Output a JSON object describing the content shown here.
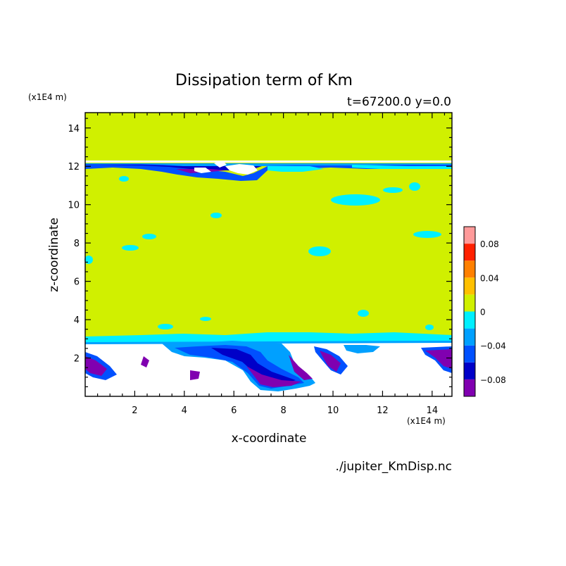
{
  "chart_data": {
    "type": "heatmap",
    "title": "Dissipation term of Km",
    "subtitle": "t=67200.0 y=0.0",
    "xlabel": "x-coordinate",
    "ylabel": "z-coordinate",
    "x_unit": "(x1E4 m)",
    "y_unit": "(x1E4 m)",
    "source_file": "./jupiter_KmDisp.nc",
    "xlim": [
      0,
      14.8
    ],
    "ylim": [
      0,
      14.8
    ],
    "x_ticks": [
      2,
      4,
      6,
      8,
      10,
      12,
      14
    ],
    "y_ticks": [
      2,
      4,
      6,
      8,
      10,
      12,
      14
    ],
    "colorbar": {
      "levels": [
        -0.1,
        -0.08,
        -0.06,
        -0.04,
        -0.02,
        0,
        0.02,
        0.04,
        0.06,
        0.08,
        0.1
      ],
      "colors": [
        "#8000b0",
        "#0000c8",
        "#0050ff",
        "#00a0ff",
        "#00f0ff",
        "#d0f000",
        "#ffc000",
        "#ff8000",
        "#ff2000",
        "#ff9a9a"
      ],
      "tick_values": [
        0.08,
        0.04,
        0,
        -0.04,
        -0.08
      ],
      "tick_labels": [
        "0.08",
        "0.04",
        "0",
        "−0.04",
        "−0.08"
      ]
    },
    "field_regions": [
      {
        "value": "< -0.1",
        "color": "#ffffff",
        "area": "below z≈3 across domain and thin band near z≈12"
      },
      {
        "value": "-0.1 to 0",
        "color": "mixed blue/purple",
        "area": "boundary layers near z≈3 and z≈12"
      },
      {
        "value": "0 to 0.02",
        "color": "#d0f000",
        "area": "interior z≈3–12 and above z≈12.4"
      }
    ]
  }
}
